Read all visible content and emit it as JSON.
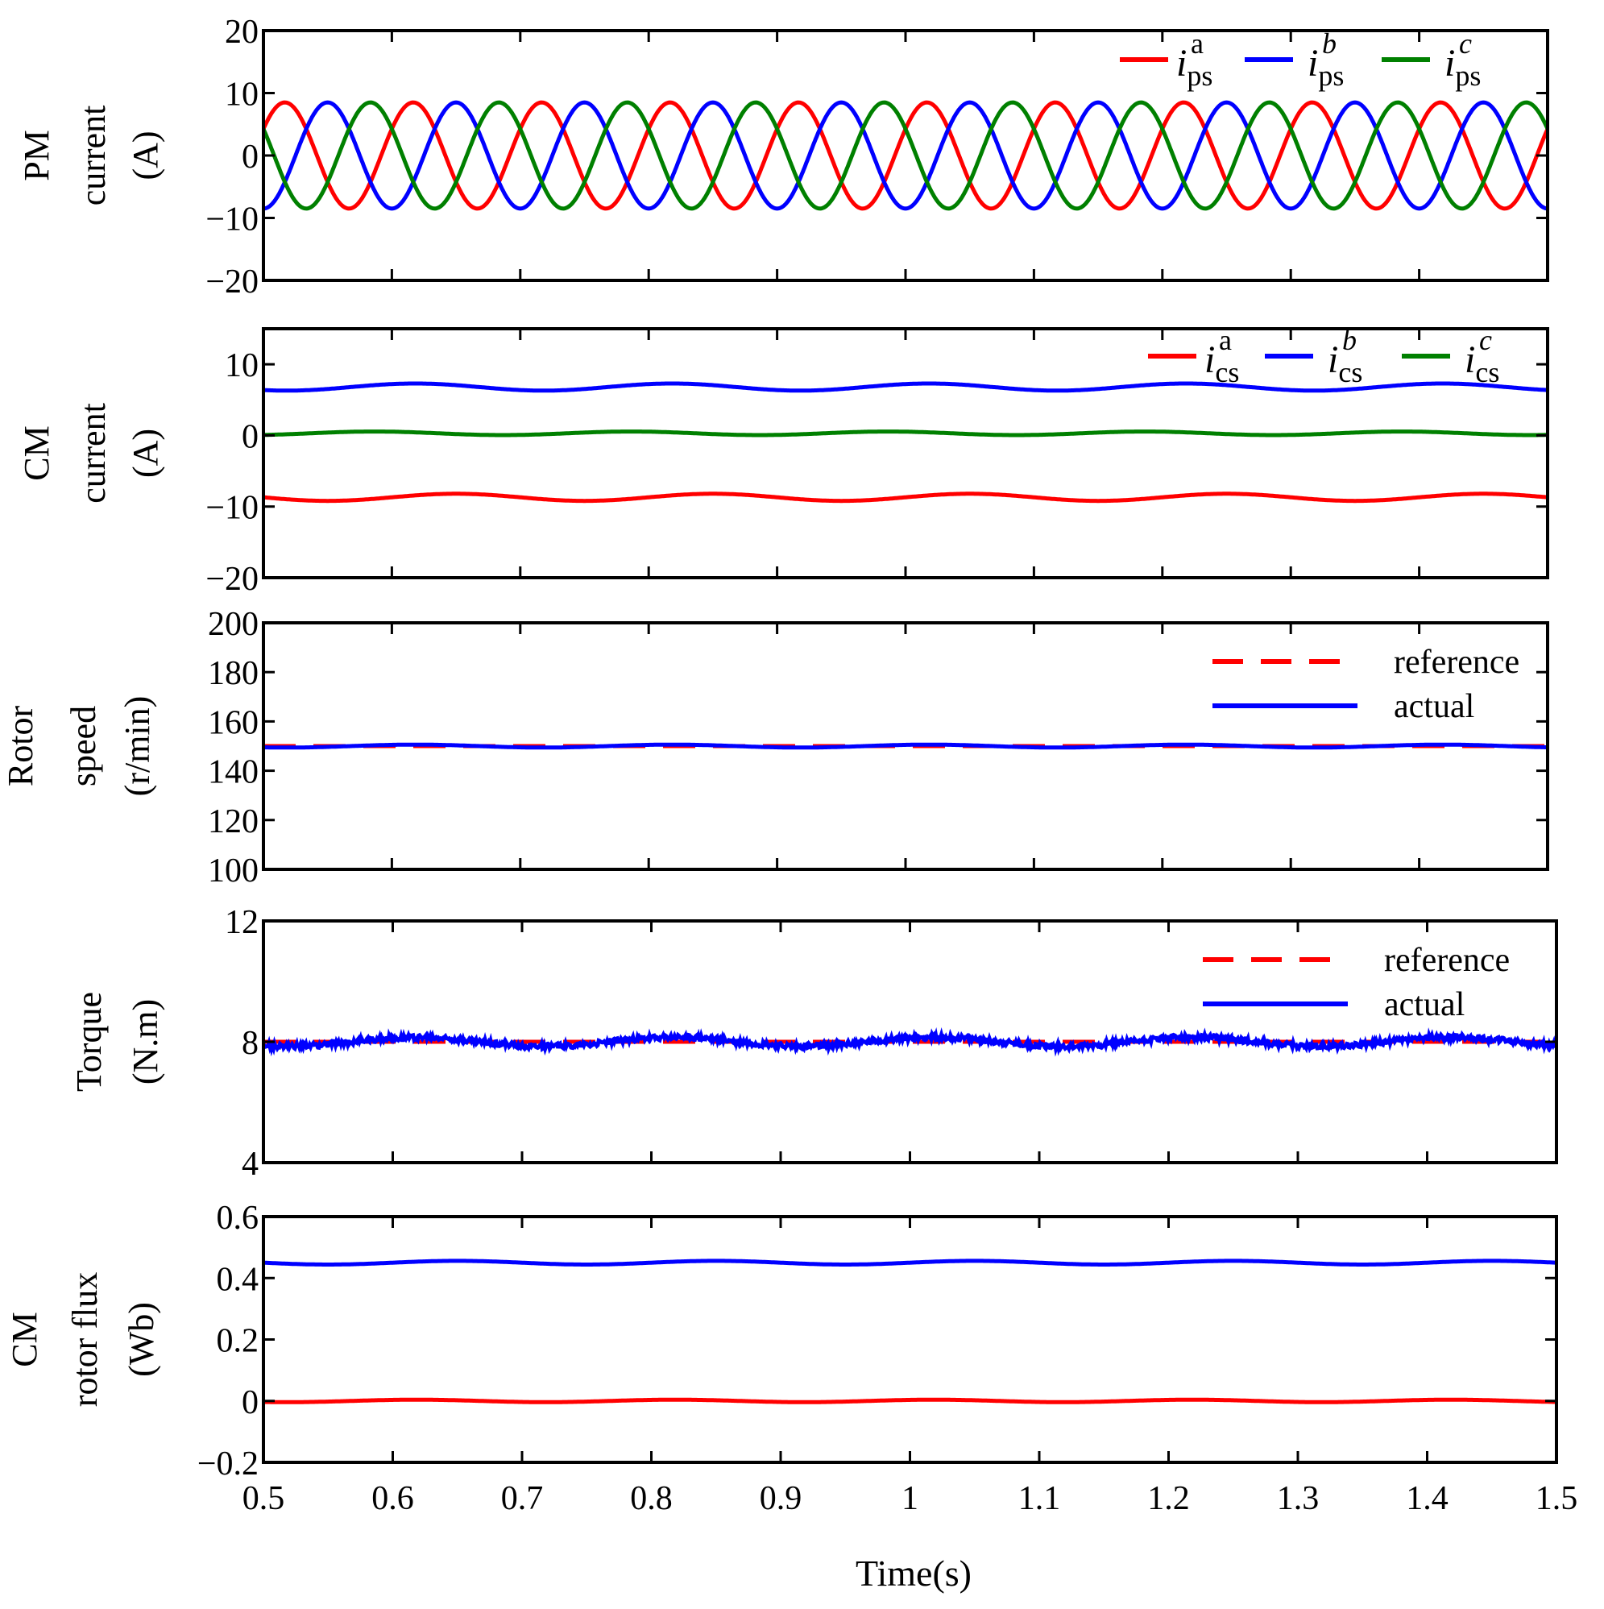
{
  "chart_data": {
    "type": "line",
    "xlabel": "Time(s)",
    "xlim": [
      0.5,
      1.5
    ],
    "xticks": [
      0.5,
      0.6,
      0.7,
      0.8,
      0.9,
      1.0,
      1.1,
      1.2,
      1.3,
      1.4,
      1.5
    ],
    "xtick_labels": [
      "0.5",
      "0.6",
      "0.7",
      "0.8",
      "0.9",
      "1",
      "1.1",
      "1.2",
      "1.3",
      "1.4",
      "1.5"
    ],
    "subplots": [
      {
        "ylabel": [
          "PM",
          "current",
          "(A)"
        ],
        "ylim": [
          -20,
          20
        ],
        "yticks": [
          20,
          10,
          0,
          -10,
          -20
        ],
        "ytick_labels": [
          "20",
          "10",
          "0",
          "−10",
          "−20"
        ],
        "legend": {
          "placement": "top-right",
          "layout": "horizontal"
        },
        "series": [
          {
            "name": "i_ps^a",
            "label_main": "i",
            "label_sub": "ps",
            "label_sup": "a",
            "sup_italic": false,
            "color": "#ff0000",
            "kind": "sine",
            "amplitude": 8.5,
            "frequency_hz": 10,
            "phase_deg": 30,
            "offset": 0
          },
          {
            "name": "i_ps^b",
            "label_main": "i",
            "label_sub": "ps",
            "label_sup": "b",
            "sup_italic": true,
            "color": "#0000ff",
            "kind": "sine",
            "amplitude": 8.5,
            "frequency_hz": 10,
            "phase_deg": -90,
            "offset": 0
          },
          {
            "name": "i_ps^c",
            "label_main": "i",
            "label_sub": "ps",
            "label_sup": "c",
            "sup_italic": true,
            "color": "#008000",
            "kind": "sine",
            "amplitude": 8.5,
            "frequency_hz": 10,
            "phase_deg": 150,
            "offset": 0
          }
        ]
      },
      {
        "ylabel": [
          "CM",
          "current",
          "(A)"
        ],
        "ylim": [
          -20,
          15
        ],
        "yticks": [
          10,
          0,
          -10,
          -20
        ],
        "ytick_labels": [
          "10",
          "0",
          "−10",
          "−20"
        ],
        "legend": {
          "placement": "top-right",
          "layout": "horizontal"
        },
        "series": [
          {
            "name": "i_cs^a",
            "label_main": "i",
            "label_sub": "cs",
            "label_sup": "a",
            "sup_italic": false,
            "color": "#ff0000",
            "kind": "flat",
            "value": -8.7,
            "ripple": 0.5
          },
          {
            "name": "i_cs^b",
            "label_main": "i",
            "label_sub": "cs",
            "label_sup": "b",
            "sup_italic": true,
            "color": "#0000ff",
            "kind": "flat",
            "value": 6.8,
            "ripple": 0.5
          },
          {
            "name": "i_cs^c",
            "label_main": "i",
            "label_sub": "cs",
            "label_sup": "c",
            "sup_italic": true,
            "color": "#008000",
            "kind": "flat",
            "value": 0.3,
            "ripple": 0.25
          }
        ]
      },
      {
        "ylabel": [
          "Rotor",
          "speed",
          "(r/min)"
        ],
        "ylim": [
          100,
          200
        ],
        "yticks": [
          200,
          180,
          160,
          140,
          120,
          100
        ],
        "ytick_labels": [
          "200",
          "180",
          "160",
          "140",
          "120",
          "100"
        ],
        "legend": {
          "placement": "top-right",
          "layout": "vertical"
        },
        "series": [
          {
            "name": "reference",
            "color": "#ff0000",
            "dashed": true,
            "kind": "flat",
            "value": 150,
            "ripple": 0
          },
          {
            "name": "actual",
            "color": "#0000ff",
            "kind": "flat",
            "value": 150,
            "ripple": 0.6
          }
        ]
      },
      {
        "ylabel": [
          "Torque",
          "(N.m)"
        ],
        "ylim": [
          4,
          12
        ],
        "yticks": [
          12,
          8,
          4
        ],
        "ytick_labels": [
          "12",
          "8",
          "4"
        ],
        "legend": {
          "placement": "top-right",
          "layout": "vertical"
        },
        "series": [
          {
            "name": "reference",
            "color": "#ff0000",
            "dashed": true,
            "kind": "flat",
            "value": 8,
            "ripple": 0
          },
          {
            "name": "actual",
            "color": "#0000ff",
            "kind": "flat",
            "value": 8,
            "ripple": 0.15,
            "noise": 0.09
          }
        ]
      },
      {
        "ylabel": [
          "CM",
          "rotor flux",
          "(Wb)"
        ],
        "ylim": [
          -0.2,
          0.6
        ],
        "yticks": [
          0.6,
          0.4,
          0.2,
          0,
          -0.2
        ],
        "ytick_labels": [
          "0.6",
          "0.4",
          "0.2",
          "0",
          "−0.2"
        ],
        "legend": null,
        "series": [
          {
            "color": "#0000ff",
            "kind": "flat",
            "value": 0.45,
            "ripple": 0.006
          },
          {
            "color": "#ff0000",
            "kind": "flat",
            "value": 0.0,
            "ripple": 0.004
          }
        ]
      }
    ]
  }
}
